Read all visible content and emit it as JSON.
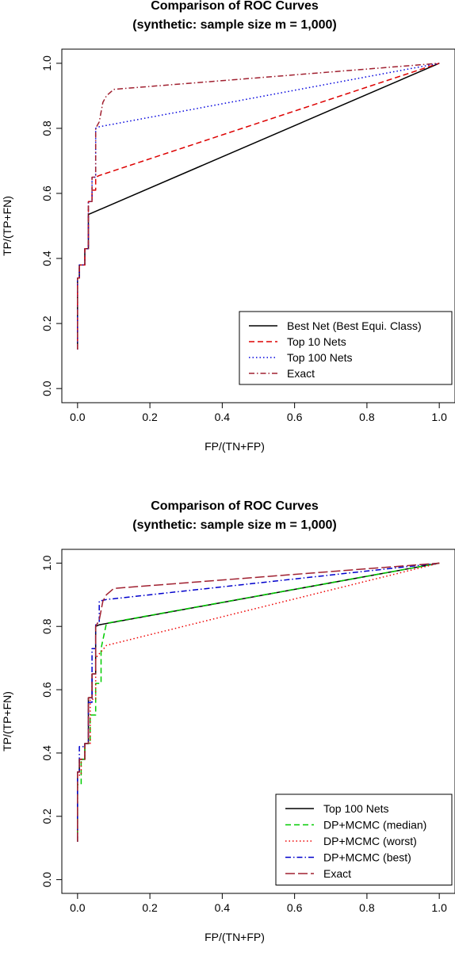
{
  "chart_data": [
    {
      "type": "line",
      "title": "Comparison of ROC Curves",
      "subtitle": "(synthetic: sample size m = 1,000)",
      "xlabel": "FP/(TN+FP)",
      "ylabel": "TP/(TP+FN)",
      "xlim": [
        0,
        1
      ],
      "ylim": [
        0,
        1
      ],
      "xticks": [
        "0.0",
        "0.2",
        "0.4",
        "0.6",
        "0.8",
        "1.0"
      ],
      "yticks": [
        "0.0",
        "0.2",
        "0.4",
        "0.6",
        "0.8",
        "1.0"
      ],
      "grid": false,
      "legend_position": "bottom-right",
      "series": [
        {
          "name": "Best Net (Best Equi. Class)",
          "color": "#000000",
          "dash": "solid",
          "x": [
            0.0,
            0.0,
            0.005,
            0.005,
            0.02,
            0.02,
            0.03,
            0.03,
            1.0
          ],
          "y": [
            0.12,
            0.34,
            0.34,
            0.38,
            0.38,
            0.43,
            0.43,
            0.535,
            1.0
          ]
        },
        {
          "name": "Top 10 Nets",
          "color": "#dd0000",
          "dash": "dashed",
          "x": [
            0.0,
            0.0,
            0.005,
            0.005,
            0.02,
            0.02,
            0.03,
            0.03,
            0.04,
            0.04,
            0.05,
            0.05,
            0.06,
            1.0
          ],
          "y": [
            0.12,
            0.34,
            0.34,
            0.38,
            0.38,
            0.43,
            0.43,
            0.575,
            0.575,
            0.61,
            0.61,
            0.65,
            0.655,
            1.0
          ]
        },
        {
          "name": "Top 100 Nets",
          "color": "#0000dd",
          "dash": "dotted",
          "x": [
            0.0,
            0.0,
            0.005,
            0.005,
            0.02,
            0.02,
            0.03,
            0.03,
            0.04,
            0.04,
            0.05,
            0.05,
            0.06,
            1.0
          ],
          "y": [
            0.12,
            0.34,
            0.34,
            0.38,
            0.38,
            0.43,
            0.43,
            0.575,
            0.575,
            0.65,
            0.65,
            0.8,
            0.805,
            1.0
          ]
        },
        {
          "name": "Exact",
          "color": "#a02030",
          "dash": "dashdot",
          "x": [
            0.0,
            0.0,
            0.005,
            0.005,
            0.02,
            0.02,
            0.03,
            0.03,
            0.04,
            0.04,
            0.05,
            0.05,
            0.06,
            0.07,
            0.08,
            0.1,
            1.0
          ],
          "y": [
            0.12,
            0.34,
            0.34,
            0.38,
            0.38,
            0.43,
            0.43,
            0.575,
            0.575,
            0.65,
            0.65,
            0.8,
            0.82,
            0.88,
            0.9,
            0.92,
            1.0
          ]
        }
      ]
    },
    {
      "type": "line",
      "title": "Comparison of ROC Curves",
      "subtitle": "(synthetic: sample size m = 1,000)",
      "xlabel": "FP/(TN+FP)",
      "ylabel": "TP/(TP+FN)",
      "xlim": [
        0,
        1
      ],
      "ylim": [
        0,
        1
      ],
      "xticks": [
        "0.0",
        "0.2",
        "0.4",
        "0.6",
        "0.8",
        "1.0"
      ],
      "yticks": [
        "0.0",
        "0.2",
        "0.4",
        "0.6",
        "0.8",
        "1.0"
      ],
      "grid": false,
      "legend_position": "bottom-right",
      "series": [
        {
          "name": "Top 100 Nets",
          "color": "#000000",
          "dash": "solid",
          "x": [
            0.0,
            0.0,
            0.005,
            0.005,
            0.02,
            0.02,
            0.03,
            0.03,
            0.04,
            0.04,
            0.05,
            0.05,
            0.06,
            1.0
          ],
          "y": [
            0.12,
            0.34,
            0.34,
            0.38,
            0.38,
            0.43,
            0.43,
            0.575,
            0.575,
            0.65,
            0.65,
            0.8,
            0.805,
            1.0
          ]
        },
        {
          "name": "DP+MCMC (median)",
          "color": "#00cc00",
          "dash": "dashed",
          "x": [
            0.0,
            0.0,
            0.01,
            0.01,
            0.02,
            0.02,
            0.035,
            0.035,
            0.05,
            0.05,
            0.065,
            0.065,
            0.08,
            1.0
          ],
          "y": [
            0.12,
            0.3,
            0.3,
            0.38,
            0.38,
            0.43,
            0.43,
            0.52,
            0.52,
            0.62,
            0.62,
            0.73,
            0.81,
            1.0
          ]
        },
        {
          "name": "DP+MCMC (worst)",
          "color": "#ee0000",
          "dash": "dotted",
          "x": [
            0.0,
            0.0,
            0.01,
            0.01,
            0.02,
            0.02,
            0.035,
            0.035,
            0.05,
            0.05,
            0.065,
            0.08,
            1.0
          ],
          "y": [
            0.12,
            0.33,
            0.33,
            0.38,
            0.38,
            0.43,
            0.43,
            0.57,
            0.57,
            0.7,
            0.72,
            0.74,
            1.0
          ]
        },
        {
          "name": "DP+MCMC (best)",
          "color": "#0000cc",
          "dash": "dashdot",
          "x": [
            0.0,
            0.0,
            0.005,
            0.005,
            0.02,
            0.02,
            0.03,
            0.03,
            0.04,
            0.04,
            0.05,
            0.05,
            0.06,
            0.06,
            0.08,
            1.0
          ],
          "y": [
            0.12,
            0.34,
            0.34,
            0.42,
            0.42,
            0.43,
            0.43,
            0.56,
            0.56,
            0.73,
            0.73,
            0.81,
            0.81,
            0.88,
            0.885,
            1.0
          ]
        },
        {
          "name": "Exact",
          "color": "#a02030",
          "dash": "longdash",
          "x": [
            0.0,
            0.0,
            0.005,
            0.005,
            0.02,
            0.02,
            0.03,
            0.03,
            0.04,
            0.04,
            0.05,
            0.05,
            0.06,
            0.07,
            0.08,
            0.1,
            1.0
          ],
          "y": [
            0.12,
            0.34,
            0.34,
            0.38,
            0.38,
            0.43,
            0.43,
            0.575,
            0.575,
            0.65,
            0.65,
            0.8,
            0.82,
            0.88,
            0.9,
            0.92,
            1.0
          ]
        }
      ]
    }
  ]
}
